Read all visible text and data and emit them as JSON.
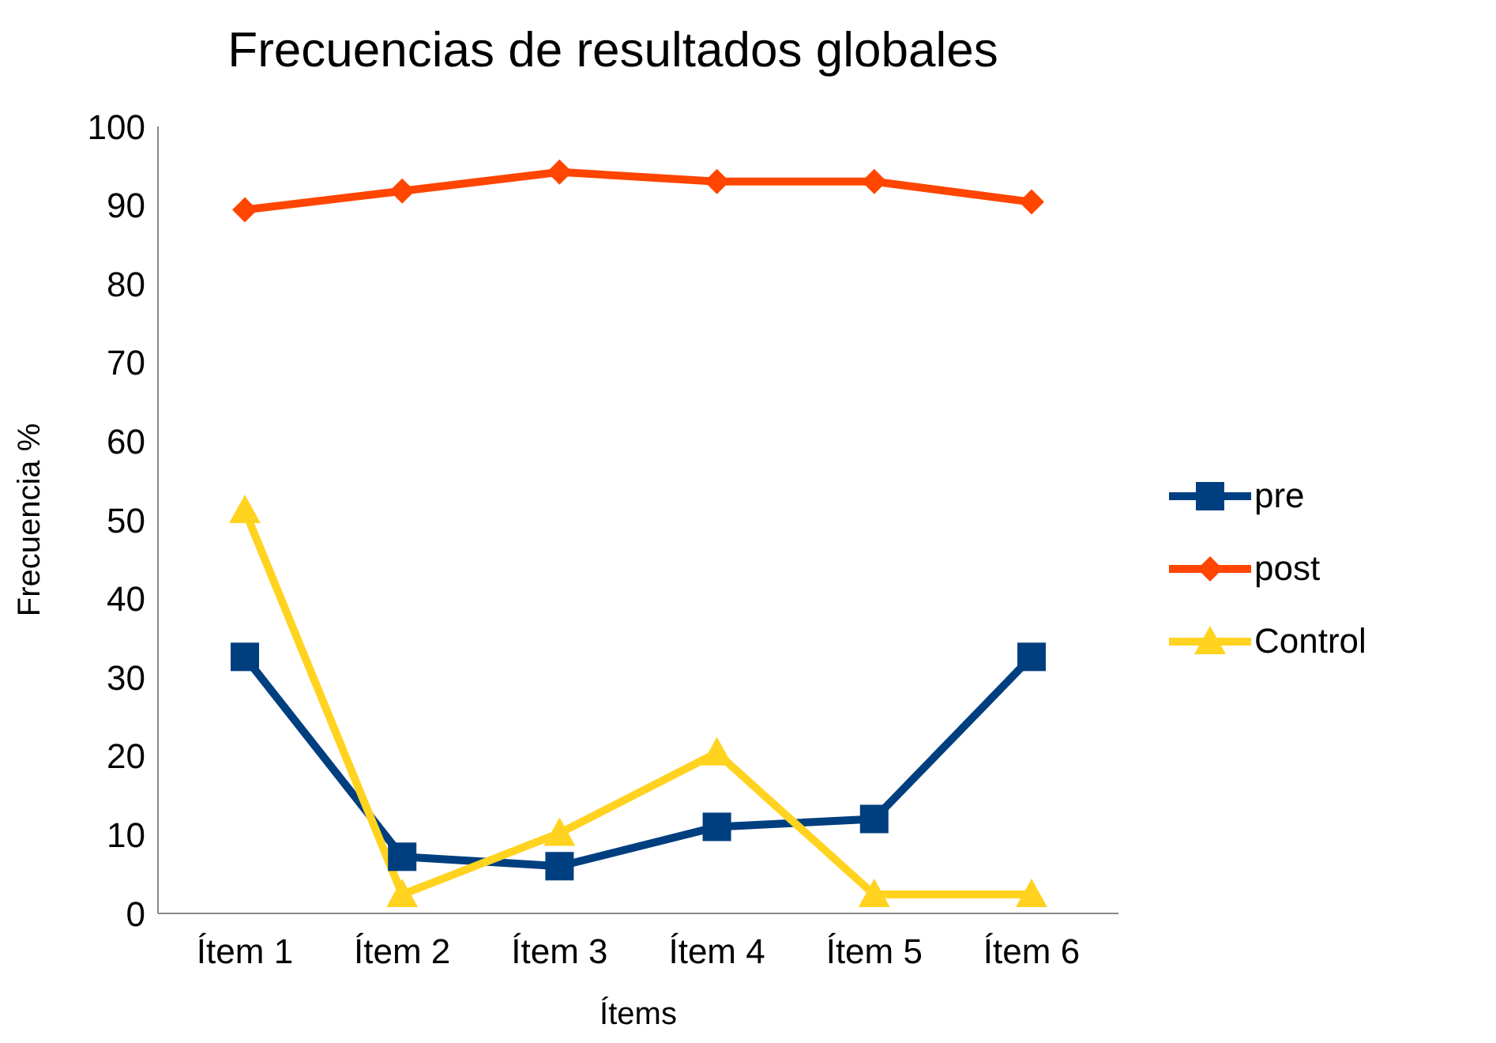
{
  "chart_data": {
    "type": "line",
    "title": "Frecuencias de resultados globales",
    "xlabel": "Ítems",
    "ylabel": "Frecuencia %",
    "categories": [
      "Ítem 1",
      "Ítem 2",
      "Ítem 3",
      "Ítem 4",
      "Ítem 5",
      "Ítem 6"
    ],
    "series": [
      {
        "name": "pre",
        "color": "#003f7f",
        "marker": "square",
        "values": [
          32.6,
          7.2,
          6,
          11,
          12,
          32.6
        ]
      },
      {
        "name": "post",
        "color": "#ff4500",
        "marker": "diamond",
        "values": [
          89.4,
          91.8,
          94.2,
          93,
          93,
          90.4
        ]
      },
      {
        "name": "Control",
        "color": "#ffd320",
        "marker": "triangle",
        "values": [
          51.2,
          2.4,
          10.2,
          20.4,
          2.4,
          2.4
        ]
      }
    ],
    "ylim": [
      0,
      100
    ],
    "yticks": [
      0,
      10,
      20,
      30,
      40,
      50,
      60,
      70,
      80,
      90,
      100
    ],
    "grid": false,
    "legend": "right"
  }
}
